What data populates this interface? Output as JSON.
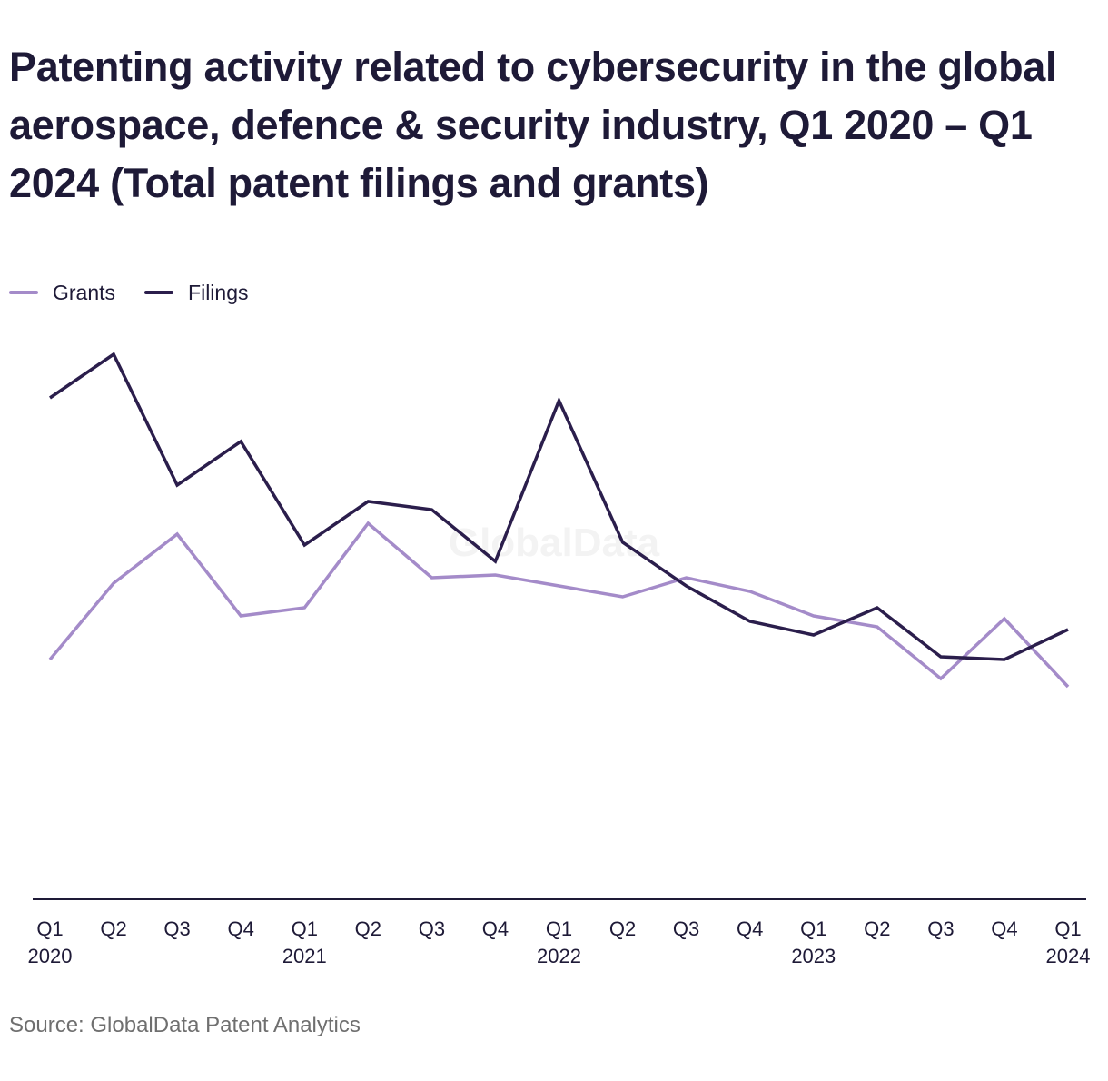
{
  "title": "Patenting activity related to cybersecurity in the global aerospace, defence & security industry, Q1 2020 – Q1 2024 (Total patent filings and grants)",
  "source": "Source: GlobalData Patent Analytics",
  "watermark": "GlobalData",
  "colors": {
    "grants": "#a48bc9",
    "filings": "#2b1e4c",
    "axis": "#1e1a37",
    "text": "#1e1a37",
    "watermark": "#f3f3f3"
  },
  "legend": {
    "placement": "top-left",
    "items": [
      {
        "label": "Grants",
        "color": "#a48bc9"
      },
      {
        "label": "Filings",
        "color": "#2b1e4c"
      }
    ]
  },
  "chart_data": {
    "type": "line",
    "title": "Patenting activity related to cybersecurity in the global aerospace, defence & security industry, Q1 2020 – Q1 2024 (Total patent filings and grants)",
    "xlabel": "",
    "ylabel": "",
    "ylim": [
      0,
      100
    ],
    "grid": false,
    "legend": "top-left",
    "categories": [
      "Q1 2020",
      "Q2 2020",
      "Q3 2020",
      "Q4 2020",
      "Q1 2021",
      "Q2 2021",
      "Q3 2021",
      "Q4 2021",
      "Q1 2022",
      "Q2 2022",
      "Q3 2022",
      "Q4 2022",
      "Q1 2023",
      "Q2 2023",
      "Q3 2023",
      "Q4 2023",
      "Q1 2024"
    ],
    "tick_labels": [
      {
        "quarter": "Q1",
        "year": "2020"
      },
      {
        "quarter": "Q2",
        "year": ""
      },
      {
        "quarter": "Q3",
        "year": ""
      },
      {
        "quarter": "Q4",
        "year": ""
      },
      {
        "quarter": "Q1",
        "year": "2021"
      },
      {
        "quarter": "Q2",
        "year": ""
      },
      {
        "quarter": "Q3",
        "year": ""
      },
      {
        "quarter": "Q4",
        "year": ""
      },
      {
        "quarter": "Q1",
        "year": "2022"
      },
      {
        "quarter": "Q2",
        "year": ""
      },
      {
        "quarter": "Q3",
        "year": ""
      },
      {
        "quarter": "Q4",
        "year": ""
      },
      {
        "quarter": "Q1",
        "year": "2023"
      },
      {
        "quarter": "Q2",
        "year": ""
      },
      {
        "quarter": "Q3",
        "year": ""
      },
      {
        "quarter": "Q4",
        "year": ""
      },
      {
        "quarter": "Q1",
        "year": "2024"
      }
    ],
    "series": [
      {
        "name": "Grants",
        "color": "#a48bc9",
        "values": [
          44,
          58,
          67,
          52,
          53.5,
          69,
          59,
          59.5,
          57.5,
          55.5,
          59,
          56.5,
          52,
          50,
          40.5,
          51.5,
          39
        ]
      },
      {
        "name": "Filings",
        "color": "#2b1e4c",
        "values": [
          92,
          100,
          76,
          84,
          65,
          73,
          71.5,
          62,
          91.5,
          65.5,
          57.5,
          51,
          48.5,
          53.5,
          44.5,
          44,
          49.5
        ]
      }
    ]
  }
}
